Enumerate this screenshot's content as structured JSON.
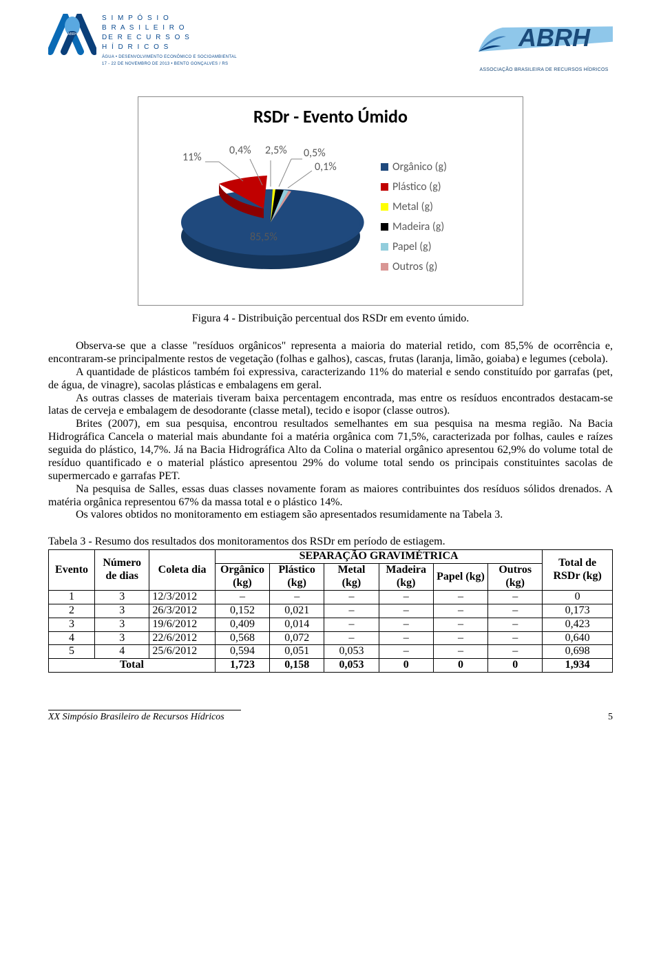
{
  "header": {
    "simp_l1": "S I M P Ó S I O",
    "simp_l2": "B R A S I L E I R O",
    "simp_l3": "DE  R E C U R S O S",
    "simp_l4": "H Í D R I C O S",
    "sub1": "ÁGUA • DESENVOLVIMENTO ECONÔMICO E SOCIOAMBIENTAL",
    "sub2": "17 - 22 DE NOVEMBRO DE 2013 • BENTO GONÇALVES / RS",
    "abrh": "ABRH",
    "abrh_sub": "ASSOCIAÇÃO BRASILEIRA DE RECURSOS HÍDRICOS"
  },
  "chart": {
    "type": "pie-3d",
    "title": "RSDr - Evento Úmido",
    "title_fontsize": 26,
    "label_fontsize": 16,
    "label_color": "#595959",
    "background_color": "#ffffff",
    "border_color": "#888888",
    "series": [
      {
        "name": "Orgânico (g)",
        "value": 85.5,
        "label": "85,5%",
        "color": "#1f497d"
      },
      {
        "name": "Plástico (g)",
        "value": 11.0,
        "label": "11%",
        "color": "#c00000"
      },
      {
        "name": "Metal (g)",
        "value": 0.4,
        "label": "0,4%",
        "color": "#ffff00"
      },
      {
        "name": "Madeira (g)",
        "value": 2.5,
        "label": "2,5%",
        "color": "#000000"
      },
      {
        "name": "Papel (g)",
        "value": 0.5,
        "label": "0,5%",
        "color": "#92cddc"
      },
      {
        "name": "Outros (g)",
        "value": 0.1,
        "label": "0,1%",
        "color": "#d99694"
      }
    ],
    "caption": "Figura 4 - Distribuição percentual dos RSDr em evento úmido."
  },
  "body": {
    "p1": "Observa-se que a classe \"resíduos orgânicos\" representa a maioria do material retido, com 85,5% de ocorrência e, encontraram-se principalmente restos de vegetação (folhas e galhos), cascas, frutas (laranja, limão, goiaba) e legumes (cebola).",
    "p2": "A quantidade de plásticos também foi expressiva, caracterizando 11% do material e sendo constituído por garrafas (pet, de água, de vinagre), sacolas plásticas e embalagens em geral.",
    "p3": "As outras classes de materiais tiveram baixa percentagem encontrada, mas entre os resíduos encontrados destacam-se latas de cerveja e embalagem de desodorante (classe metal), tecido e isopor (classe outros).",
    "p4": "Brites (2007), em sua pesquisa, encontrou resultados semelhantes em sua pesquisa na mesma região. Na Bacia Hidrográfica Cancela o material mais abundante foi a matéria orgânica com 71,5%, caracterizada por folhas, caules e raízes seguida do plástico, 14,7%. Já na Bacia Hidrográfica Alto da Colina o material orgânico apresentou 62,9% do volume total de resíduo quantificado e o material plástico apresentou 29% do volume total sendo os principais constituintes sacolas de supermercado e garrafas PET.",
    "p5": "Na pesquisa de Salles, essas duas classes novamente foram as maiores contribuintes dos resíduos sólidos drenados. A matéria orgânica representou 67% da massa total e o plástico 14%.",
    "p6": "Os valores obtidos no monitoramento em estiagem são apresentados resumidamente na Tabela 3."
  },
  "table": {
    "caption": "Tabela 3 - Resumo dos resultados dos monitoramentos dos RSDr em período de estiagem.",
    "head": {
      "evento": "Evento",
      "dias": "Número de dias",
      "coleta": "Coleta dia",
      "sep": "SEPARAÇÃO GRAVIMÉTRICA",
      "organico": "Orgânico (kg)",
      "plastico": "Plástico (kg)",
      "metal": "Metal (kg)",
      "madeira": "Madeira (kg)",
      "papel": "Papel (kg)",
      "outros": "Outros (kg)",
      "total": "Total de RSDr (kg)"
    },
    "rows": [
      {
        "evento": "1",
        "dias": "3",
        "coleta": "12/3/2012",
        "org": "–",
        "pla": "–",
        "met": "–",
        "mad": "–",
        "pap": "–",
        "out": "–",
        "tot": "0"
      },
      {
        "evento": "2",
        "dias": "3",
        "coleta": "26/3/2012",
        "org": "0,152",
        "pla": "0,021",
        "met": "–",
        "mad": "–",
        "pap": "–",
        "out": "–",
        "tot": "0,173"
      },
      {
        "evento": "3",
        "dias": "3",
        "coleta": "19/6/2012",
        "org": "0,409",
        "pla": "0,014",
        "met": "–",
        "mad": "–",
        "pap": "–",
        "out": "–",
        "tot": "0,423"
      },
      {
        "evento": "4",
        "dias": "3",
        "coleta": "22/6/2012",
        "org": "0,568",
        "pla": "0,072",
        "met": "–",
        "mad": "–",
        "pap": "–",
        "out": "–",
        "tot": "0,640"
      },
      {
        "evento": "5",
        "dias": "4",
        "coleta": "25/6/2012",
        "org": "0,594",
        "pla": "0,051",
        "met": "0,053",
        "mad": "–",
        "pap": "–",
        "out": "–",
        "tot": "0,698"
      }
    ],
    "total_row": {
      "label": "Total",
      "org": "1,723",
      "pla": "0,158",
      "met": "0,053",
      "mad": "0",
      "pap": "0",
      "out": "0",
      "tot": "1,934"
    }
  },
  "footer": {
    "text": "XX Simpósio Brasileiro de Recursos Hídricos",
    "page": "5"
  }
}
